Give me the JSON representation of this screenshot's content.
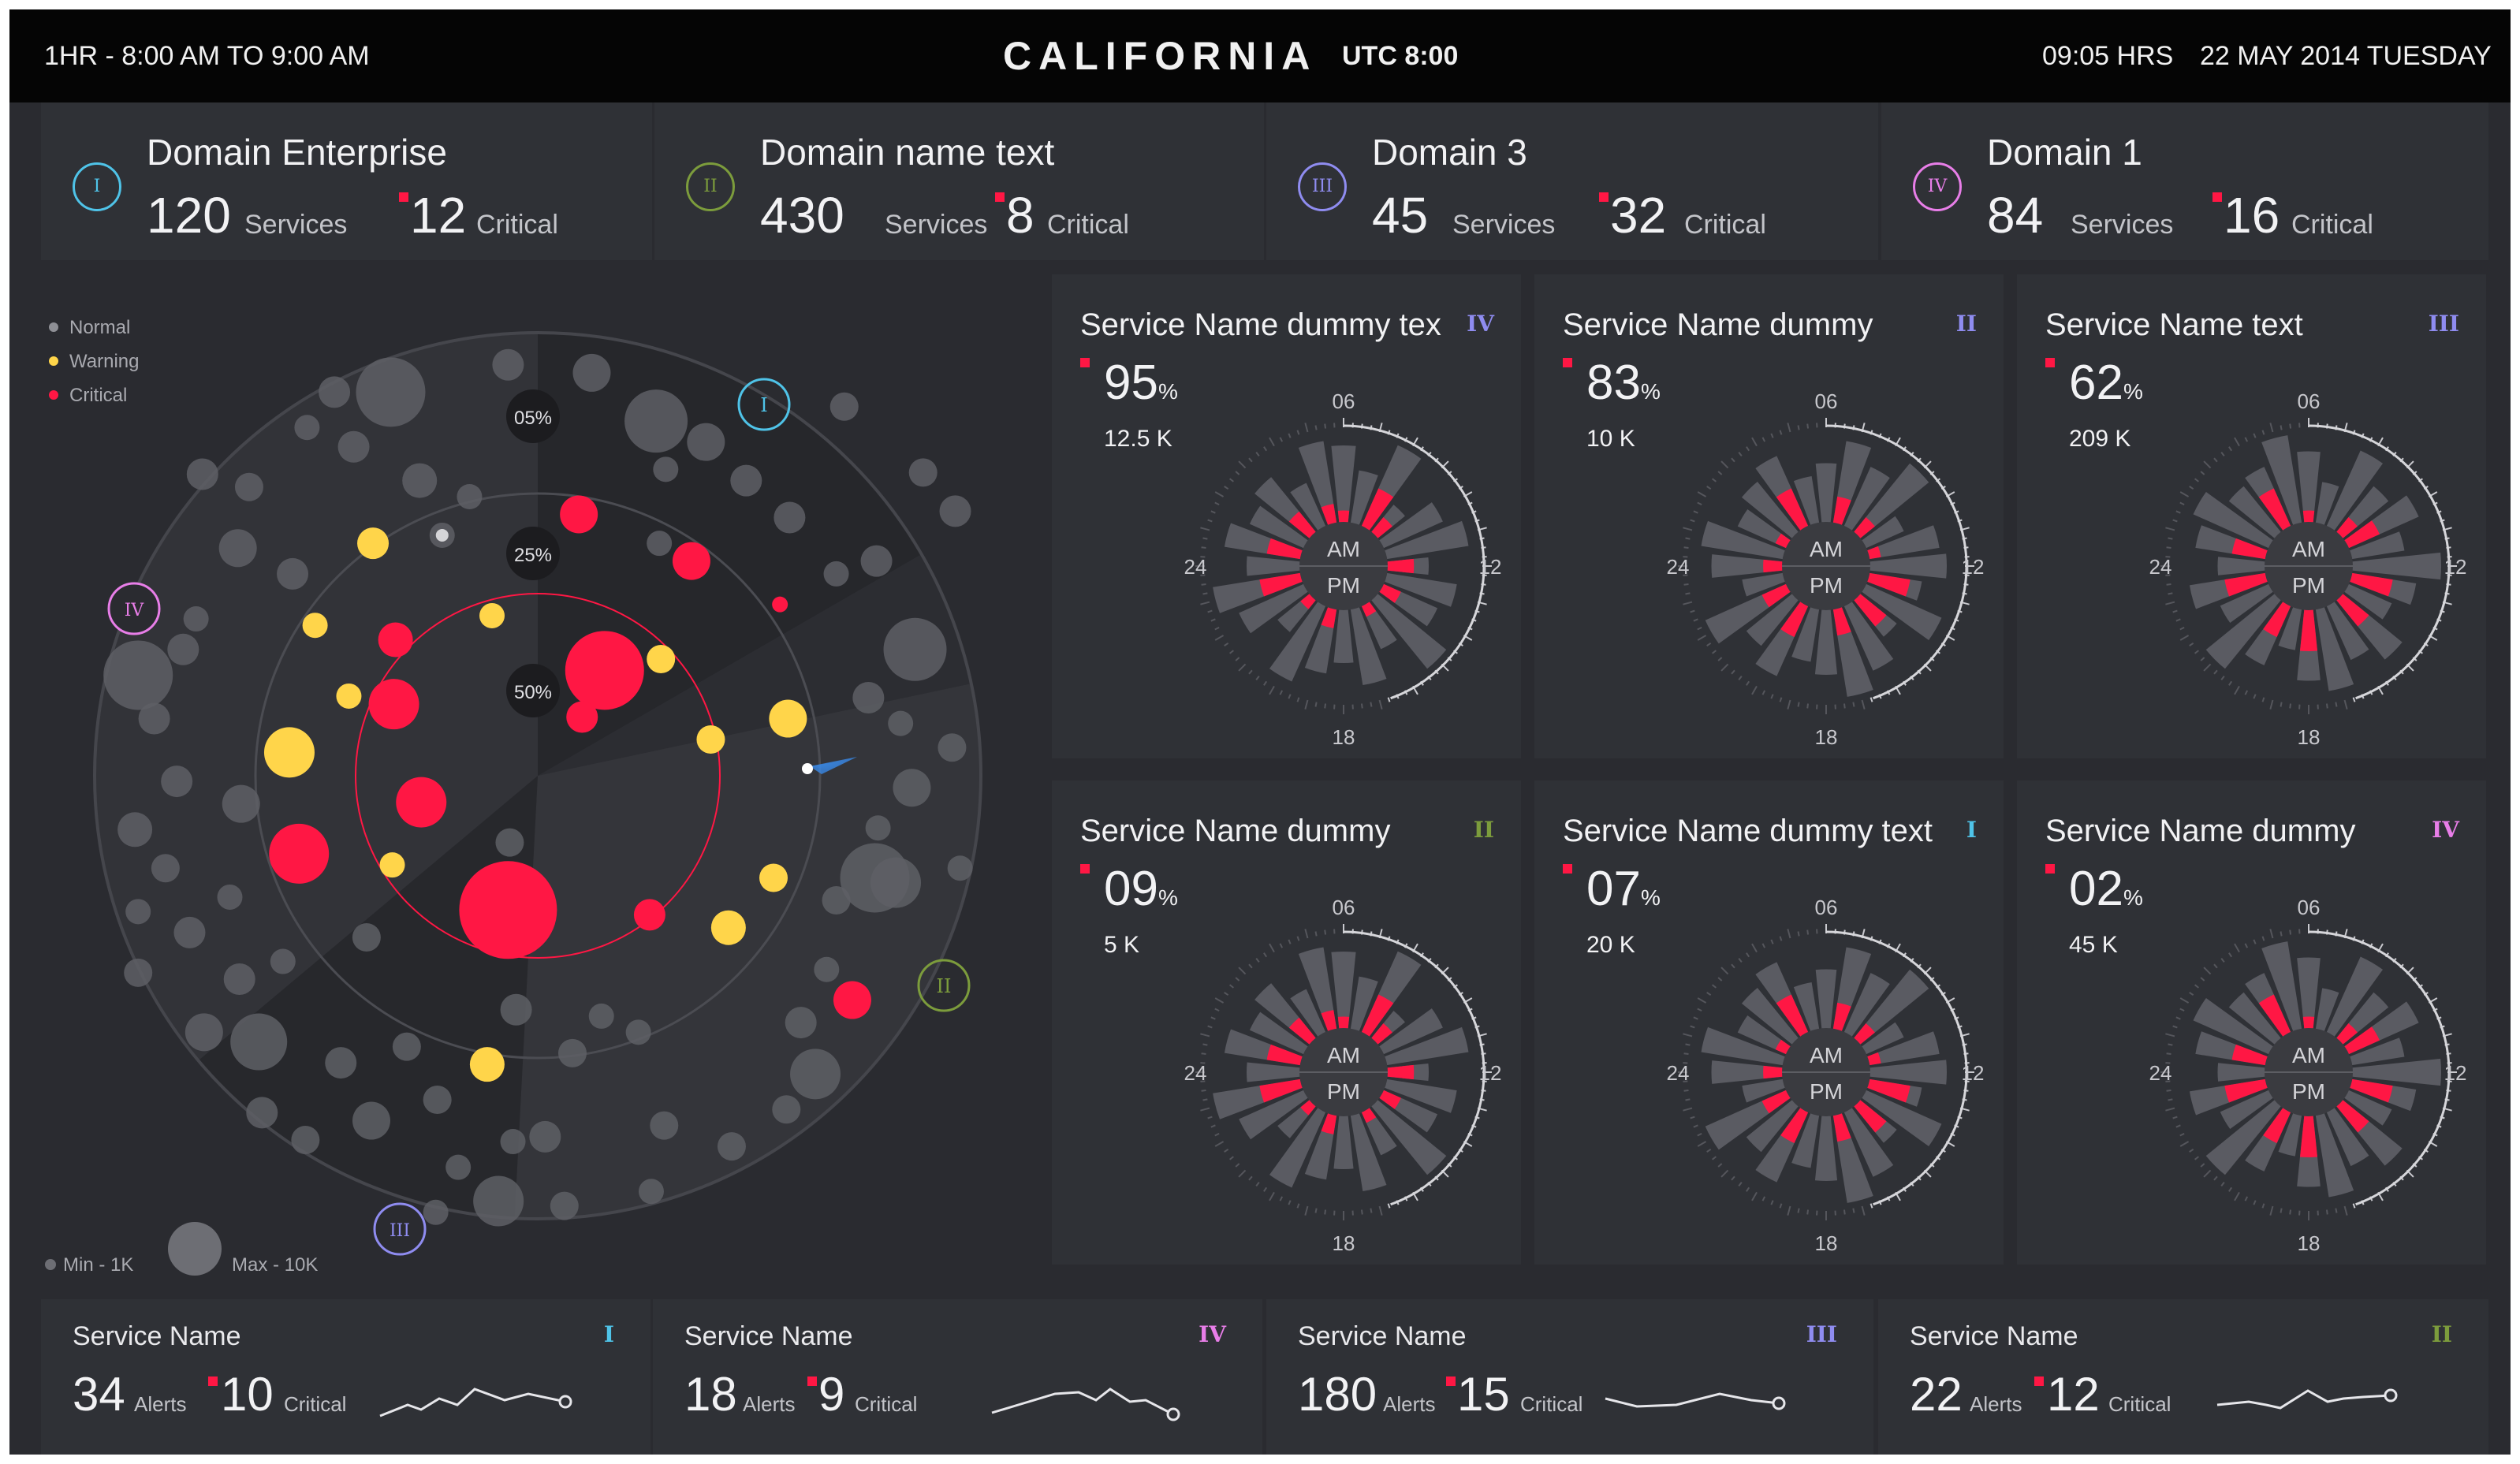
{
  "header": {
    "range": "1HR - 8:00 AM  TO  9:00 AM",
    "city": "CALIFORNIA",
    "utc": "UTC  8:00",
    "time": "09:05 HRS",
    "date": "22 MAY 2014 TUESDAY"
  },
  "domains": [
    {
      "badge": "I",
      "name": "Domain Enterprise",
      "services": "120",
      "services_label": "Services",
      "critical": "12",
      "critical_label": "Critical",
      "color": "#4fc3e8"
    },
    {
      "badge": "II",
      "name": "Domain name text",
      "services": "430",
      "services_label": "Services",
      "critical": "8",
      "critical_label": "Critical",
      "color": "#7c9c3c"
    },
    {
      "badge": "III",
      "name": "Domain 3",
      "services": "45",
      "services_label": "Services",
      "critical": "32",
      "critical_label": "Critical",
      "color": "#8f8cf0"
    },
    {
      "badge": "IV",
      "name": "Domain 1",
      "services": "84",
      "services_label": "Services",
      "critical": "16",
      "critical_label": "Critical",
      "color": "#e87ee8"
    }
  ],
  "radar": {
    "legend": [
      {
        "label": "Normal",
        "color": "#8e8f95"
      },
      {
        "label": "Warning",
        "color": "#ffd54a"
      },
      {
        "label": "Critical",
        "color": "#ff1744"
      }
    ],
    "rings": [
      "05%",
      "25%",
      "50%"
    ],
    "badges": [
      {
        "label": "I",
        "color": "#4fc3e8"
      },
      {
        "label": "II",
        "color": "#7c9c3c"
      },
      {
        "label": "III",
        "color": "#8f8cf0"
      },
      {
        "label": "IV",
        "color": "#e87ee8"
      }
    ],
    "size_min": "Min - 1K",
    "size_max": "Max - 10K"
  },
  "services": [
    {
      "title": "Service Name dummy tex",
      "badge": "IV",
      "badge_color": "#8f8cf0",
      "pct": "95",
      "unit": "%",
      "count": "12.5 K"
    },
    {
      "title": "Service Name dummy",
      "badge": "II",
      "badge_color": "#8f8cf0",
      "pct": "83",
      "unit": "%",
      "count": "10 K"
    },
    {
      "title": "Service Name text",
      "badge": "III",
      "badge_color": "#8f8cf0",
      "pct": "62",
      "unit": "%",
      "count": "209 K"
    },
    {
      "title": "Service Name dummy",
      "badge": "II",
      "badge_color": "#7c9c3c",
      "pct": "09",
      "unit": "%",
      "count": "5 K"
    },
    {
      "title": "Service Name dummy text",
      "badge": "I",
      "badge_color": "#4fc3e8",
      "pct": "07",
      "unit": "%",
      "count": "20 K"
    },
    {
      "title": "Service Name dummy",
      "badge": "IV",
      "badge_color": "#e87ee8",
      "pct": "02",
      "unit": "%",
      "count": "45 K"
    }
  ],
  "clock_labels": {
    "top": "06",
    "right": "12",
    "bottom": "18",
    "left": "24",
    "am": "AM",
    "pm": "PM"
  },
  "alerts": [
    {
      "title": "Service Name",
      "alerts": "34",
      "alerts_label": "Alerts",
      "critical": "10",
      "critical_label": "Critical",
      "badge": "I",
      "badge_color": "#4fc3e8"
    },
    {
      "title": "Service Name",
      "alerts": "18",
      "alerts_label": "Alerts",
      "critical": "9",
      "critical_label": "Critical",
      "badge": "IV",
      "badge_color": "#e87ee8"
    },
    {
      "title": "Service Name",
      "alerts": "180",
      "alerts_label": "Alerts",
      "critical": "15",
      "critical_label": "Critical",
      "badge": "III",
      "badge_color": "#8f8cf0"
    },
    {
      "title": "Service Name",
      "alerts": "22",
      "alerts_label": "Alerts",
      "critical": "12",
      "critical_label": "Critical",
      "badge": "II",
      "badge_color": "#7c9c3c"
    }
  ],
  "colors": {
    "critical": "#ff1744",
    "warning": "#ffd54a",
    "normal": "#6d6e74",
    "bar": "#5a5b62"
  }
}
